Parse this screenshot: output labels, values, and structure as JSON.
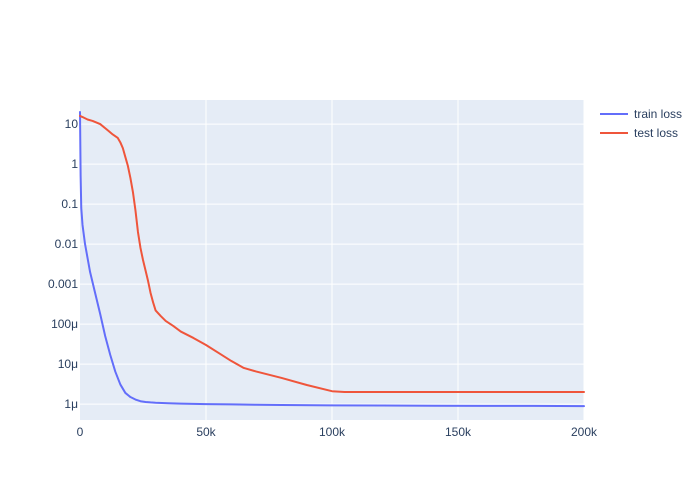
{
  "chart_data": {
    "type": "line",
    "title": "",
    "xlabel": "",
    "ylabel": "",
    "x_scale": "linear",
    "y_scale": "log",
    "xlim": [
      0,
      200000
    ],
    "ylim": [
      4e-07,
      40
    ],
    "grid": true,
    "legend_position": "top-right (outside plot)",
    "x_ticks": [
      {
        "value": 0,
        "label": "0"
      },
      {
        "value": 50000,
        "label": "50k"
      },
      {
        "value": 100000,
        "label": "100k"
      },
      {
        "value": 150000,
        "label": "150k"
      },
      {
        "value": 200000,
        "label": "200k"
      }
    ],
    "y_ticks": [
      {
        "value": 10,
        "label": "10"
      },
      {
        "value": 1,
        "label": "1"
      },
      {
        "value": 0.1,
        "label": "0.1"
      },
      {
        "value": 0.01,
        "label": "0.01"
      },
      {
        "value": 0.001,
        "label": "0.001"
      },
      {
        "value": 0.0001,
        "label": "100μ"
      },
      {
        "value": 1e-05,
        "label": "10μ"
      },
      {
        "value": 1e-06,
        "label": "1μ"
      }
    ],
    "series": [
      {
        "name": "train loss",
        "color": "#636efa",
        "x": [
          0,
          250,
          500,
          1000,
          2000,
          4000,
          6000,
          8000,
          10000,
          12000,
          14000,
          16000,
          18000,
          20000,
          22000,
          24000,
          26000,
          28000,
          30000,
          35000,
          40000,
          50000,
          60000,
          70000,
          80000,
          100000,
          120000,
          140000,
          160000,
          180000,
          200000
        ],
        "y": [
          20,
          0.5,
          0.08,
          0.03,
          0.01,
          0.002,
          0.0006,
          0.00018,
          5e-05,
          1.7e-05,
          6.5e-06,
          3.1e-06,
          1.9e-06,
          1.5e-06,
          1.3e-06,
          1.18e-06,
          1.13e-06,
          1.1e-06,
          1.08e-06,
          1.05e-06,
          1.03e-06,
          1e-06,
          9.8e-07,
          9.6e-07,
          9.5e-07,
          9.3e-07,
          9.2e-07,
          9.1e-07,
          9e-07,
          9e-07,
          8.9e-07
        ]
      },
      {
        "name": "test loss",
        "color": "#ef553b",
        "x": [
          0,
          1000,
          3000,
          5000,
          8000,
          11000,
          13000,
          15000,
          16000,
          17000,
          18000,
          19000,
          20000,
          21000,
          22000,
          23000,
          24000,
          25000,
          26000,
          27000,
          28000,
          29000,
          30000,
          32000,
          34000,
          37000,
          40000,
          45000,
          50000,
          55000,
          60000,
          65000,
          70000,
          80000,
          90000,
          100000,
          105000,
          110000,
          120000,
          130000,
          140000,
          150000,
          160000,
          170000,
          180000,
          190000,
          200000
        ],
        "y": [
          16,
          15,
          13,
          12,
          10,
          7,
          5.5,
          4.5,
          3.5,
          2.5,
          1.5,
          0.9,
          0.45,
          0.2,
          0.07,
          0.02,
          0.008,
          0.004,
          0.0022,
          0.0012,
          0.0006,
          0.00035,
          0.00022,
          0.00016,
          0.00012,
          9e-05,
          6.5e-05,
          4.5e-05,
          3e-05,
          1.9e-05,
          1.2e-05,
          8e-06,
          6.5e-06,
          4.5e-06,
          3e-06,
          2.1e-06,
          2e-06,
          2e-06,
          2e-06,
          2e-06,
          2e-06,
          2e-06,
          2e-06,
          2e-06,
          2e-06,
          2e-06,
          2e-06
        ]
      }
    ]
  }
}
